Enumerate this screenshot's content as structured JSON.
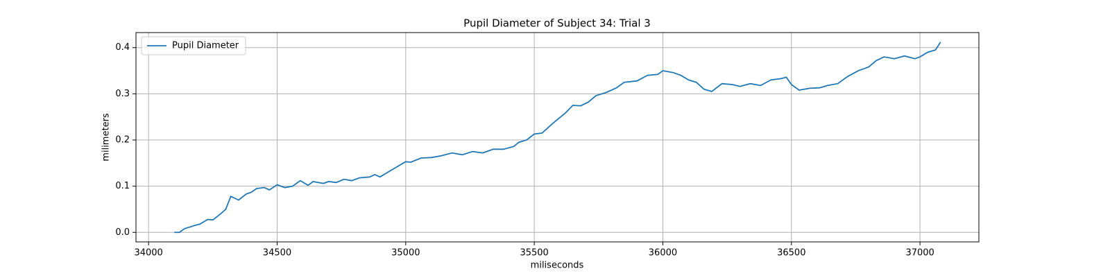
{
  "chart_data": {
    "type": "line",
    "title": "Pupil Diameter of Subject 34: Trial 3",
    "xlabel": "miliseconds",
    "ylabel": "milimeters",
    "x": [
      34100,
      34120,
      34140,
      34180,
      34200,
      34230,
      34250,
      34280,
      34300,
      34320,
      34350,
      34380,
      34400,
      34420,
      34450,
      34470,
      34500,
      34530,
      34560,
      34590,
      34620,
      34640,
      34680,
      34700,
      34730,
      34760,
      34790,
      34820,
      34860,
      34880,
      34900,
      34930,
      34960,
      35000,
      35020,
      35060,
      35100,
      35140,
      35180,
      35220,
      35260,
      35300,
      35340,
      35380,
      35420,
      35440,
      35470,
      35500,
      35530,
      35570,
      35620,
      35650,
      35680,
      35710,
      35740,
      35780,
      35820,
      35850,
      35900,
      35940,
      35980,
      36000,
      36040,
      36070,
      36100,
      36130,
      36160,
      36190,
      36230,
      36270,
      36300,
      36340,
      36380,
      36420,
      36460,
      36480,
      36500,
      36530,
      36570,
      36610,
      36640,
      36680,
      36720,
      36760,
      36800,
      36830,
      36860,
      36900,
      36940,
      36980,
      37000,
      37030,
      37060,
      37080
    ],
    "series": [
      {
        "name": "Pupil Diameter",
        "color": "#1f77b4",
        "values": [
          0,
          0,
          0.008,
          0.015,
          0.018,
          0.028,
          0.027,
          0.04,
          0.05,
          0.078,
          0.07,
          0.083,
          0.087,
          0.095,
          0.097,
          0.092,
          0.103,
          0.097,
          0.1,
          0.112,
          0.102,
          0.11,
          0.106,
          0.11,
          0.108,
          0.115,
          0.112,
          0.118,
          0.12,
          0.125,
          0.12,
          0.13,
          0.14,
          0.153,
          0.152,
          0.161,
          0.162,
          0.166,
          0.172,
          0.168,
          0.175,
          0.172,
          0.18,
          0.18,
          0.186,
          0.195,
          0.2,
          0.213,
          0.215,
          0.235,
          0.258,
          0.275,
          0.274,
          0.282,
          0.296,
          0.303,
          0.313,
          0.325,
          0.328,
          0.34,
          0.342,
          0.35,
          0.346,
          0.34,
          0.33,
          0.325,
          0.31,
          0.305,
          0.322,
          0.32,
          0.316,
          0.322,
          0.318,
          0.33,
          0.333,
          0.336,
          0.32,
          0.308,
          0.312,
          0.313,
          0.318,
          0.322,
          0.338,
          0.35,
          0.358,
          0.372,
          0.38,
          0.376,
          0.382,
          0.376,
          0.38,
          0.39,
          0.395,
          0.412
        ]
      }
    ],
    "xlim": [
      33951,
      37229
    ],
    "xticks": [
      34000,
      34500,
      35000,
      35500,
      36000,
      36500,
      37000
    ],
    "ylim": [
      -0.0206,
      0.4326
    ],
    "yticks": [
      {
        "value": 0,
        "label": "0.0"
      },
      0.1,
      0.2,
      0.3,
      0.4
    ],
    "grid": true,
    "legend": "upper left"
  }
}
